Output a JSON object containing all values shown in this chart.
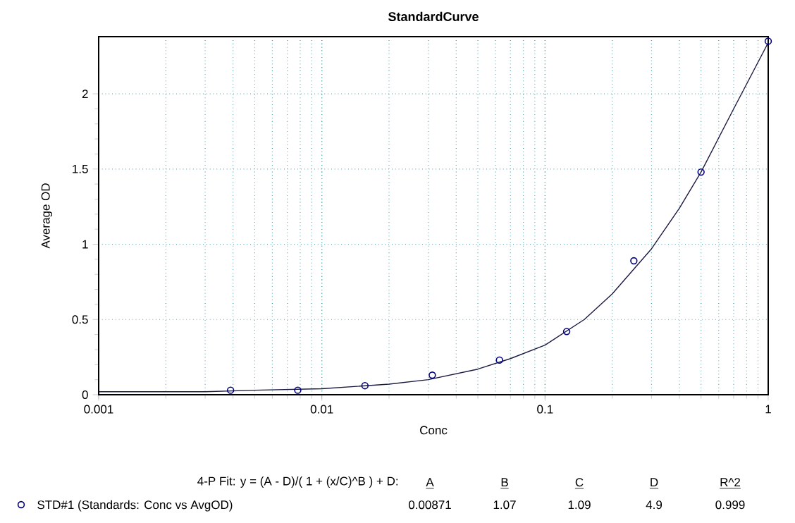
{
  "chart_data": {
    "type": "line",
    "title": "StandardCurve",
    "xlabel": "Conc",
    "ylabel": "Average OD",
    "series": [
      {
        "name": "STD#1 (Standards: Conc vs AvgOD)",
        "type": "scatter",
        "color": "#000080",
        "x": [
          0.0039,
          0.0078,
          0.0156,
          0.03125,
          0.0625,
          0.125,
          0.25,
          0.5,
          1
        ],
        "values": [
          0.03,
          0.03,
          0.06,
          0.13,
          0.23,
          0.42,
          0.89,
          1.48,
          2.35
        ]
      },
      {
        "marker": "none",
        "color": "#1a1a40",
        "x": [
          0.001,
          0.002,
          0.003,
          0.005,
          0.01,
          0.02,
          0.03,
          0.05,
          0.07,
          0.1,
          0.15,
          0.2,
          0.3,
          0.4,
          0.5,
          0.7,
          1
        ],
        "values": [
          0.02,
          0.02,
          0.02,
          0.03,
          0.04,
          0.07,
          0.1,
          0.17,
          0.24,
          0.33,
          0.5,
          0.67,
          0.97,
          1.24,
          1.48,
          1.9,
          2.34
        ]
      }
    ],
    "xlim": [
      0.001,
      1
    ],
    "xticks": [
      0.001,
      0.01,
      0.1,
      1
    ],
    "ylim": [
      0,
      2.38
    ],
    "yticks": [
      0,
      0.5,
      1,
      1.5,
      2
    ],
    "log": "x",
    "grid": true,
    "legend": "bottom",
    "marker": "circle",
    "line_style": "solid",
    "annotations": [
      "4-P Fit: y = (A - D)/( 1 + (x/C)^B ) + D:",
      "A",
      "B",
      "C",
      "D",
      "R^2",
      "0.00871",
      "1.07",
      "1.09",
      "4.9",
      "0.999"
    ]
  }
}
